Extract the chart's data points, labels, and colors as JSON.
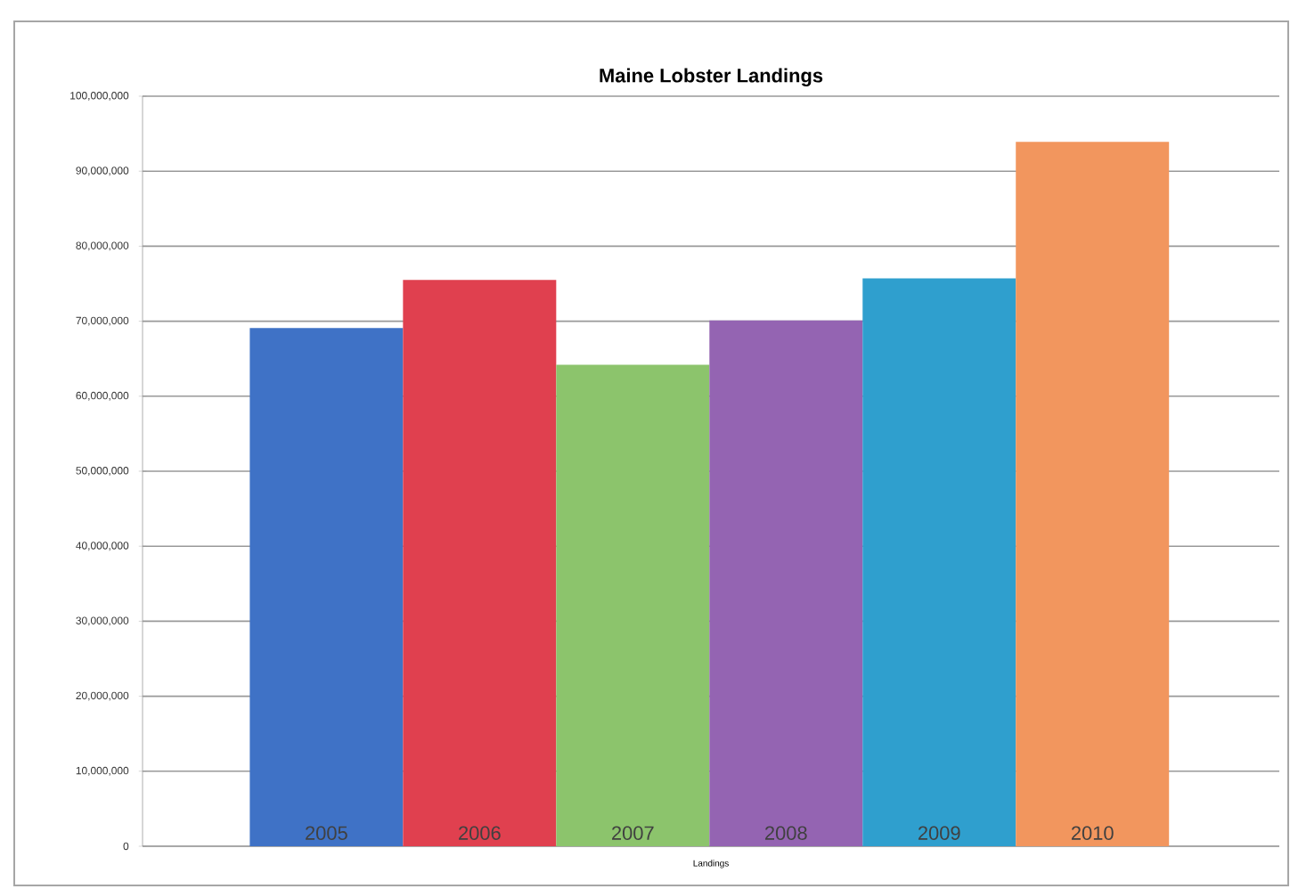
{
  "chart_data": {
    "type": "bar",
    "title": "Maine Lobster Landings",
    "xlabel": "Landings",
    "categories": [
      "2005",
      "2006",
      "2007",
      "2008",
      "2009",
      "2010"
    ],
    "values": [
      69100000,
      75500000,
      64200000,
      70100000,
      75700000,
      93900000
    ],
    "colors": [
      "#3f72c6",
      "#e0404f",
      "#8cc46c",
      "#9464b2",
      "#2f9fce",
      "#f2965e"
    ],
    "ylim": [
      0,
      100000000
    ],
    "yticks": [
      {
        "value": 0,
        "label": "0"
      },
      {
        "value": 10000000,
        "label": "10,000,000"
      },
      {
        "value": 20000000,
        "label": "20,000,000"
      },
      {
        "value": 30000000,
        "label": "30,000,000"
      },
      {
        "value": 40000000,
        "label": "40,000,000"
      },
      {
        "value": 50000000,
        "label": "50,000,000"
      },
      {
        "value": 60000000,
        "label": "60,000,000"
      },
      {
        "value": 70000000,
        "label": "70,000,000"
      },
      {
        "value": 80000000,
        "label": "80,000,000"
      },
      {
        "value": 90000000,
        "label": "90,000,000"
      },
      {
        "value": 100000000,
        "label": "100,000,000"
      }
    ],
    "grid": "y"
  }
}
